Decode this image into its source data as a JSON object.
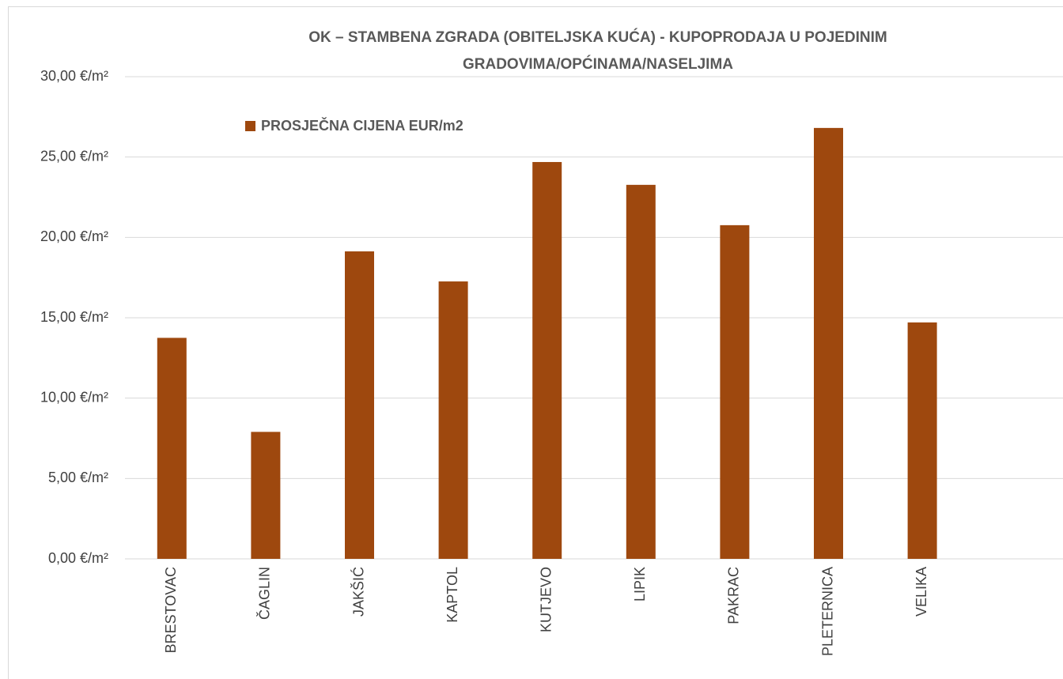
{
  "chart_data": {
    "type": "bar",
    "title": [
      "OK – STAMBENA ZGRADA (OBITELJSKA KUĆA) - KUPOPRODAJA U POJEDINIM",
      "GRADOVIMA/OPĆINAMA/NASELJIMA"
    ],
    "categories": [
      "BRESTOVAC",
      "ČAGLIN",
      "JAKŠIĆ",
      "KAPTOL",
      "KUTJEVO",
      "LIPIK",
      "PAKRAC",
      "PLETERNICA",
      "VELIKA",
      null
    ],
    "series": [
      {
        "name": "PROSJEČNA CIJENA EUR/m2",
        "color": "#9e480e",
        "values": [
          13.75,
          7.9,
          19.13,
          17.26,
          24.69,
          23.27,
          20.76,
          26.81,
          14.71,
          null
        ]
      }
    ],
    "ylim": [
      0,
      30
    ],
    "yticks": [
      {
        "value": 0,
        "label": "0,00 €/m²"
      },
      {
        "value": 5,
        "label": "5,00 €/m²"
      },
      {
        "value": 10,
        "label": "10,00 €/m²"
      },
      {
        "value": 15,
        "label": "15,00 €/m²"
      },
      {
        "value": 20,
        "label": "20,00 €/m²"
      },
      {
        "value": 25,
        "label": "25,00 €/m²"
      },
      {
        "value": 30,
        "label": "30,00 €/m²"
      }
    ],
    "grid": true,
    "legend": "top-left"
  }
}
